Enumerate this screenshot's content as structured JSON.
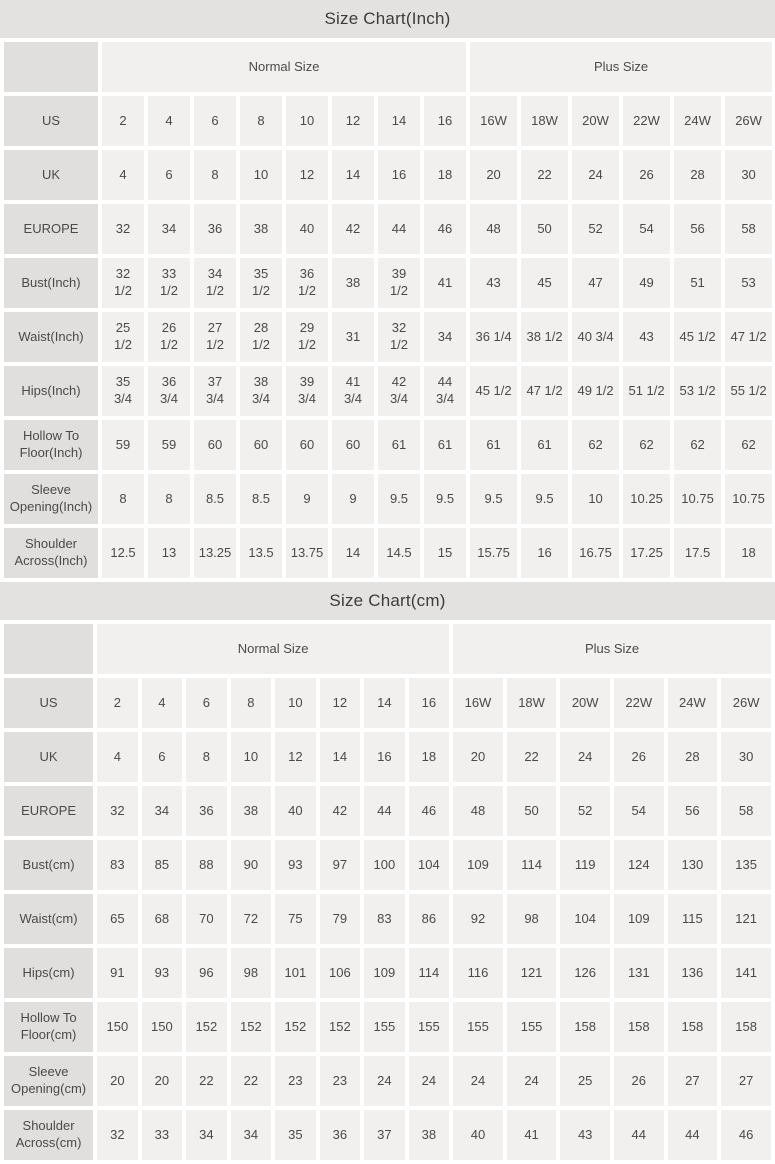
{
  "page_title": "Size Chart",
  "colors": {
    "title_bar_bg": "#e3e2e1",
    "label_cell_bg": "#e0dfde",
    "data_cell_bg": "#f1f0ef",
    "text": "#4a4a48",
    "page_bg": "#ffffff"
  },
  "chart_data": [
    {
      "type": "table",
      "title": "Size Chart(Inch)",
      "unit": "inch",
      "group_headers": [
        "Normal Size",
        "Plus Size"
      ],
      "normal_col_count": 8,
      "plus_col_count": 6,
      "rows": [
        {
          "label": "US",
          "values": [
            "2",
            "4",
            "6",
            "8",
            "10",
            "12",
            "14",
            "16",
            "16W",
            "18W",
            "20W",
            "22W",
            "24W",
            "26W"
          ]
        },
        {
          "label": "UK",
          "values": [
            "4",
            "6",
            "8",
            "10",
            "12",
            "14",
            "16",
            "18",
            "20",
            "22",
            "24",
            "26",
            "28",
            "30"
          ]
        },
        {
          "label": "EUROPE",
          "values": [
            "32",
            "34",
            "36",
            "38",
            "40",
            "42",
            "44",
            "46",
            "48",
            "50",
            "52",
            "54",
            "56",
            "58"
          ]
        },
        {
          "label": "Bust(Inch)",
          "values": [
            "32 1/2",
            "33 1/2",
            "34 1/2",
            "35 1/2",
            "36 1/2",
            "38",
            "39 1/2",
            "41",
            "43",
            "45",
            "47",
            "49",
            "51",
            "53"
          ]
        },
        {
          "label": "Waist(Inch)",
          "values": [
            "25 1/2",
            "26 1/2",
            "27 1/2",
            "28 1/2",
            "29 1/2",
            "31",
            "32 1/2",
            "34",
            "36 1/4",
            "38 1/2",
            "40 3/4",
            "43",
            "45 1/2",
            "47 1/2"
          ]
        },
        {
          "label": "Hips(Inch)",
          "values": [
            "35 3/4",
            "36 3/4",
            "37 3/4",
            "38 3/4",
            "39 3/4",
            "41 3/4",
            "42 3/4",
            "44 3/4",
            "45 1/2",
            "47 1/2",
            "49 1/2",
            "51 1/2",
            "53 1/2",
            "55 1/2"
          ]
        },
        {
          "label": "Hollow To Floor(Inch)",
          "values": [
            "59",
            "59",
            "60",
            "60",
            "60",
            "60",
            "61",
            "61",
            "61",
            "61",
            "62",
            "62",
            "62",
            "62"
          ]
        },
        {
          "label": "Sleeve Opening(Inch)",
          "values": [
            "8",
            "8",
            "8.5",
            "8.5",
            "9",
            "9",
            "9.5",
            "9.5",
            "9.5",
            "9.5",
            "10",
            "10.25",
            "10.75",
            "10.75"
          ]
        },
        {
          "label": "Shoulder Across(Inch)",
          "values": [
            "12.5",
            "13",
            "13.25",
            "13.5",
            "13.75",
            "14",
            "14.5",
            "15",
            "15.75",
            "16",
            "16.75",
            "17.25",
            "17.5",
            "18"
          ]
        }
      ]
    },
    {
      "type": "table",
      "title": "Size Chart(cm)",
      "unit": "cm",
      "group_headers": [
        "Normal Size",
        "Plus Size"
      ],
      "normal_col_count": 8,
      "plus_col_count": 6,
      "rows": [
        {
          "label": "US",
          "values": [
            "2",
            "4",
            "6",
            "8",
            "10",
            "12",
            "14",
            "16",
            "16W",
            "18W",
            "20W",
            "22W",
            "24W",
            "26W"
          ]
        },
        {
          "label": "UK",
          "values": [
            "4",
            "6",
            "8",
            "10",
            "12",
            "14",
            "16",
            "18",
            "20",
            "22",
            "24",
            "26",
            "28",
            "30"
          ]
        },
        {
          "label": "EUROPE",
          "values": [
            "32",
            "34",
            "36",
            "38",
            "40",
            "42",
            "44",
            "46",
            "48",
            "50",
            "52",
            "54",
            "56",
            "58"
          ]
        },
        {
          "label": "Bust(cm)",
          "values": [
            "83",
            "85",
            "88",
            "90",
            "93",
            "97",
            "100",
            "104",
            "109",
            "114",
            "119",
            "124",
            "130",
            "135"
          ]
        },
        {
          "label": "Waist(cm)",
          "values": [
            "65",
            "68",
            "70",
            "72",
            "75",
            "79",
            "83",
            "86",
            "92",
            "98",
            "104",
            "109",
            "115",
            "121"
          ]
        },
        {
          "label": "Hips(cm)",
          "values": [
            "91",
            "93",
            "96",
            "98",
            "101",
            "106",
            "109",
            "114",
            "116",
            "121",
            "126",
            "131",
            "136",
            "141"
          ]
        },
        {
          "label": "Hollow To Floor(cm)",
          "values": [
            "150",
            "150",
            "152",
            "152",
            "152",
            "152",
            "155",
            "155",
            "155",
            "155",
            "158",
            "158",
            "158",
            "158"
          ]
        },
        {
          "label": "Sleeve Opening(cm)",
          "values": [
            "20",
            "20",
            "22",
            "22",
            "23",
            "23",
            "24",
            "24",
            "24",
            "24",
            "25",
            "26",
            "27",
            "27"
          ]
        },
        {
          "label": "Shoulder Across(cm)",
          "values": [
            "32",
            "33",
            "34",
            "34",
            "35",
            "36",
            "37",
            "38",
            "40",
            "41",
            "43",
            "44",
            "44",
            "46"
          ]
        }
      ]
    }
  ]
}
